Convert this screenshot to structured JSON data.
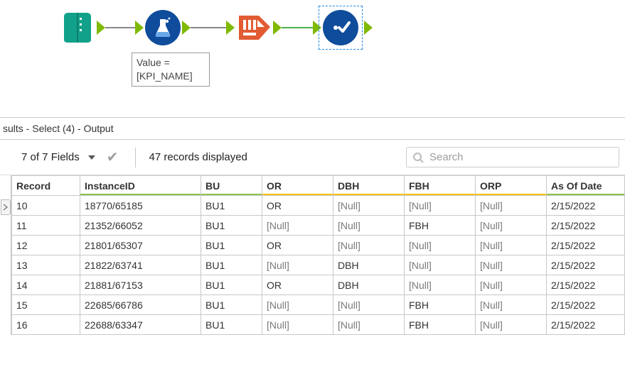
{
  "workflow": {
    "annotation_text": "Value =\n[KPI_NAME]",
    "tools": [
      {
        "name": "macro-input",
        "color": "#11a18a",
        "shape": "book"
      },
      {
        "name": "formula",
        "color": "#0f4c9c",
        "shape": "flask"
      },
      {
        "name": "select",
        "color": "#e25b33",
        "shape": "select"
      },
      {
        "name": "macro-output",
        "color": "#0f4c9c",
        "shape": "check"
      }
    ]
  },
  "panel": {
    "title": "sults - Select (4) - Output",
    "fields_label": "7 of 7 Fields",
    "records_label": "47 records displayed",
    "search_placeholder": "Search"
  },
  "columns": [
    {
      "key": "Record",
      "label": "Record",
      "accent": "none"
    },
    {
      "key": "InstanceID",
      "label": "InstanceID",
      "accent": "green"
    },
    {
      "key": "BU",
      "label": "BU",
      "accent": "green"
    },
    {
      "key": "OR",
      "label": "OR",
      "accent": "yellow"
    },
    {
      "key": "DBH",
      "label": "DBH",
      "accent": "yellow"
    },
    {
      "key": "FBH",
      "label": "FBH",
      "accent": "yellow"
    },
    {
      "key": "ORP",
      "label": "ORP",
      "accent": "yellow"
    },
    {
      "key": "AsOfDate",
      "label": "As Of Date",
      "accent": "green"
    }
  ],
  "null_text": "[Null]",
  "rows": [
    {
      "Record": "10",
      "InstanceID": "18770/65185",
      "BU": "BU1",
      "OR": "OR",
      "DBH": null,
      "FBH": null,
      "ORP": null,
      "AsOfDate": "2/15/2022"
    },
    {
      "Record": "11",
      "InstanceID": "21352/66052",
      "BU": "BU1",
      "OR": null,
      "DBH": null,
      "FBH": "FBH",
      "ORP": null,
      "AsOfDate": "2/15/2022"
    },
    {
      "Record": "12",
      "InstanceID": "21801/65307",
      "BU": "BU1",
      "OR": "OR",
      "DBH": null,
      "FBH": null,
      "ORP": null,
      "AsOfDate": "2/15/2022"
    },
    {
      "Record": "13",
      "InstanceID": "21822/63741",
      "BU": "BU1",
      "OR": null,
      "DBH": "DBH",
      "FBH": null,
      "ORP": null,
      "AsOfDate": "2/15/2022"
    },
    {
      "Record": "14",
      "InstanceID": "21881/67153",
      "BU": "BU1",
      "OR": "OR",
      "DBH": "DBH",
      "FBH": null,
      "ORP": null,
      "AsOfDate": "2/15/2022"
    },
    {
      "Record": "15",
      "InstanceID": "22685/66786",
      "BU": "BU1",
      "OR": null,
      "DBH": null,
      "FBH": "FBH",
      "ORP": null,
      "AsOfDate": "2/15/2022"
    },
    {
      "Record": "16",
      "InstanceID": "22688/63347",
      "BU": "BU1",
      "OR": null,
      "DBH": null,
      "FBH": "FBH",
      "ORP": null,
      "AsOfDate": "2/15/2022"
    }
  ]
}
